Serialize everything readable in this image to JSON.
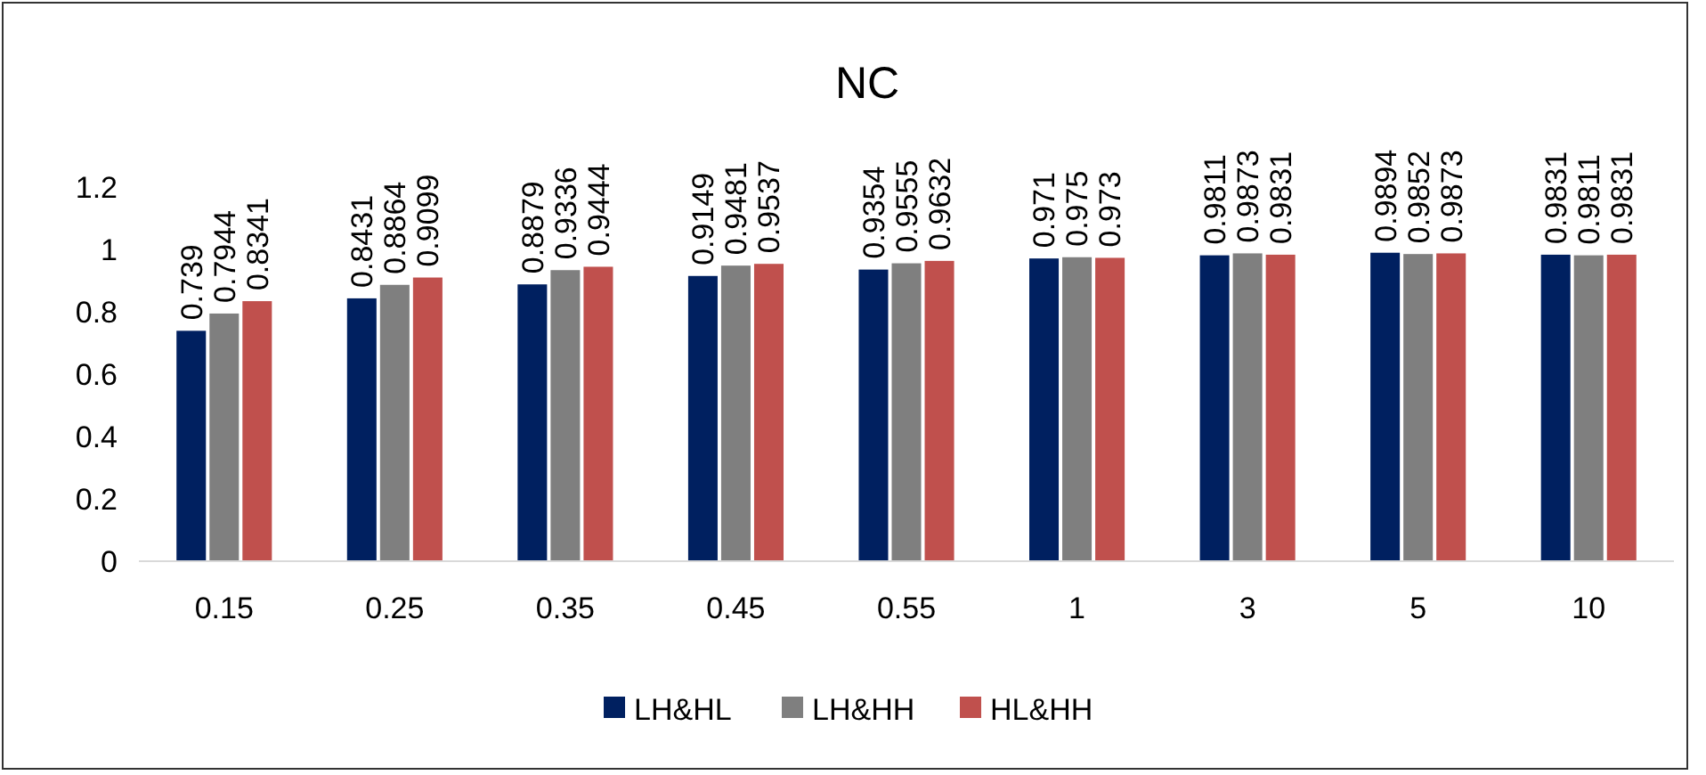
{
  "chart_data": {
    "type": "bar",
    "title": "NC",
    "categories": [
      "0.15",
      "0.25",
      "0.35",
      "0.45",
      "0.55",
      "1",
      "3",
      "5",
      "10"
    ],
    "series": [
      {
        "name": "LH&HL",
        "color": "#002060",
        "values": [
          0.739,
          0.8431,
          0.8879,
          0.9149,
          0.9354,
          0.971,
          0.9811,
          0.9894,
          0.9831
        ]
      },
      {
        "name": "LH&HH",
        "color": "#7f7f7f",
        "values": [
          0.7944,
          0.8864,
          0.9336,
          0.9481,
          0.9555,
          0.975,
          0.9873,
          0.9852,
          0.9811
        ]
      },
      {
        "name": "HL&HH",
        "color": "#c0504d",
        "values": [
          0.8341,
          0.9099,
          0.9444,
          0.9537,
          0.9632,
          0.973,
          0.9831,
          0.9873,
          0.9831
        ]
      }
    ],
    "ylim": [
      0,
      1.2
    ],
    "yticks": [
      0,
      0.2,
      0.4,
      0.6,
      0.8,
      1,
      1.2
    ],
    "grid": false,
    "legend": "bottom",
    "data_labels": true
  }
}
